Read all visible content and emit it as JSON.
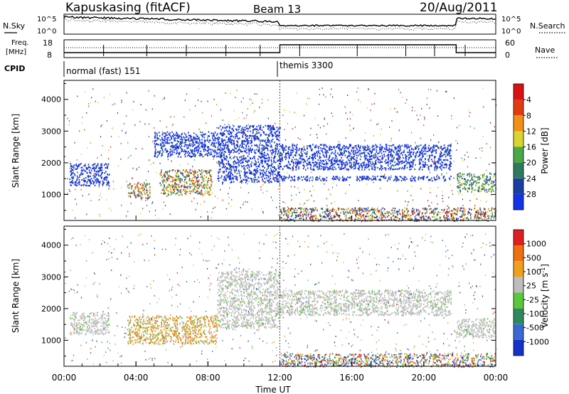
{
  "header": {
    "station": "Kapuskasing (fitACF)",
    "beam": "Beam 13",
    "date": "20/Aug/2011"
  },
  "noise_panel": {
    "left_label": "N.Sky",
    "right_label": "N.Search",
    "left_ticks": [
      "10^5",
      "10^0"
    ],
    "right_ticks": [
      "10^5",
      "10^0"
    ]
  },
  "freq_panel": {
    "left_label_1": "Freq.",
    "left_label_2": "[MHz]",
    "right_label": "Nave",
    "left_ticks": [
      "18",
      "8"
    ],
    "right_ticks": [
      "60",
      "0"
    ]
  },
  "cpid": {
    "label": "CPID",
    "segments": [
      {
        "name": "normal (fast) 151",
        "start_h": 0,
        "end_h": 12
      },
      {
        "name": "themis 3300",
        "start_h": 12,
        "end_h": 24
      }
    ]
  },
  "chart_data": [
    {
      "type": "heatmap",
      "xlabel": "",
      "ylabel": "Slant Range [km]",
      "x_range_h": [
        0,
        24
      ],
      "ylim": [
        180,
        4600
      ],
      "yticks": [
        "1000",
        "2000",
        "3000",
        "4000"
      ],
      "colorbar": {
        "label": "Power [dB]",
        "ticks": [
          "4",
          "8",
          "12",
          "16",
          "20",
          "24",
          "28"
        ],
        "colors": [
          "#1432e6",
          "#1a3fa0",
          "#2f7a5c",
          "#4aa84a",
          "#d8d430",
          "#f09018",
          "#e43a12",
          "#d81212"
        ]
      },
      "regions": [
        {
          "start_h": 0.3,
          "end_h": 2.5,
          "range_km": [
            1300,
            2000
          ],
          "level": "weak"
        },
        {
          "start_h": 3.5,
          "end_h": 4.8,
          "range_km": [
            900,
            1400
          ],
          "level": "strong"
        },
        {
          "start_h": 5.3,
          "end_h": 8.2,
          "range_km": [
            1000,
            1800
          ],
          "level": "strong"
        },
        {
          "start_h": 5.0,
          "end_h": 8.5,
          "range_km": [
            2200,
            3000
          ],
          "level": "weak"
        },
        {
          "start_h": 8.5,
          "end_h": 12.0,
          "range_km": [
            1400,
            3200
          ],
          "level": "weak"
        },
        {
          "start_h": 12.0,
          "end_h": 21.5,
          "range_km": [
            1800,
            2600
          ],
          "level": "weak"
        },
        {
          "start_h": 12.0,
          "end_h": 21.5,
          "range_km": [
            1450,
            1600
          ],
          "level": "weak"
        },
        {
          "start_h": 21.8,
          "end_h": 24.0,
          "range_km": [
            1100,
            1700
          ],
          "level": "medium"
        },
        {
          "start_h": 12.0,
          "end_h": 24.0,
          "range_km": [
            180,
            600
          ],
          "level": "mixed"
        }
      ]
    },
    {
      "type": "heatmap",
      "xlabel": "Time UT",
      "ylabel": "Slant Range [km]",
      "x_range_h": [
        0,
        24
      ],
      "xticks": [
        "00:00",
        "04:00",
        "08:00",
        "12:00",
        "16:00",
        "20:00",
        "00:00"
      ],
      "ylim": [
        180,
        4600
      ],
      "yticks": [
        "1000",
        "2000",
        "3000",
        "4000"
      ],
      "colorbar": {
        "label": "Velocity [m s^-1]",
        "ticks": [
          "1000",
          "500",
          "100",
          "25",
          "-25",
          "-100",
          "-500",
          "-1000"
        ],
        "colors": [
          "#1432c8",
          "#3a6ad0",
          "#2e8a5e",
          "#5ac83a",
          "#bdbdbd",
          "#f0a020",
          "#f07010",
          "#e02020"
        ]
      },
      "regions": [
        {
          "start_h": 0.3,
          "end_h": 2.5,
          "range_km": [
            1200,
            1900
          ],
          "level": "ground"
        },
        {
          "start_h": 3.5,
          "end_h": 8.5,
          "range_km": [
            900,
            1800
          ],
          "level": "negative"
        },
        {
          "start_h": 8.5,
          "end_h": 12.0,
          "range_km": [
            1400,
            3200
          ],
          "level": "ground"
        },
        {
          "start_h": 12.0,
          "end_h": 21.5,
          "range_km": [
            1800,
            2600
          ],
          "level": "ground"
        },
        {
          "start_h": 21.8,
          "end_h": 24.0,
          "range_km": [
            1100,
            1700
          ],
          "level": "ground"
        },
        {
          "start_h": 12.0,
          "end_h": 24.0,
          "range_km": [
            180,
            600
          ],
          "level": "mixed"
        }
      ]
    }
  ]
}
